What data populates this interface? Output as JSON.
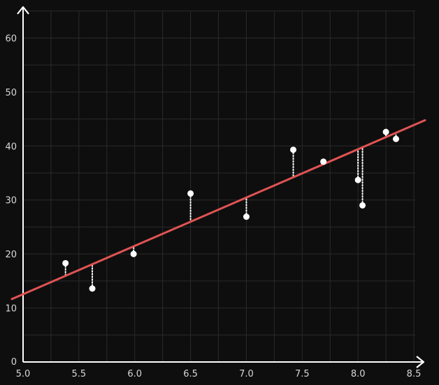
{
  "chart_data": {
    "type": "scatter",
    "title": "",
    "xlabel": "",
    "ylabel": "",
    "xlim": [
      5.0,
      8.6
    ],
    "ylim": [
      0,
      66
    ],
    "x_ticks": [
      5.0,
      5.5,
      6.0,
      6.5,
      7.0,
      7.5,
      8.0,
      8.5
    ],
    "x_tick_labels": [
      "5.0",
      "5.5",
      "6.0",
      "6.5",
      "7.0",
      "7.5",
      "8.0",
      "8.5"
    ],
    "y_ticks": [
      0,
      10,
      20,
      30,
      40,
      50,
      60
    ],
    "y_tick_labels": [
      "0",
      "10",
      "20",
      "30",
      "40",
      "50",
      "60"
    ],
    "grid": true,
    "points": [
      {
        "x": 5.38,
        "y": 18.3
      },
      {
        "x": 5.62,
        "y": 13.6
      },
      {
        "x": 5.99,
        "y": 20.0
      },
      {
        "x": 6.5,
        "y": 31.2
      },
      {
        "x": 7.0,
        "y": 26.9
      },
      {
        "x": 7.42,
        "y": 39.3
      },
      {
        "x": 7.69,
        "y": 37.1
      },
      {
        "x": 8.0,
        "y": 33.7
      },
      {
        "x": 8.04,
        "y": 29.0
      },
      {
        "x": 8.25,
        "y": 42.6
      },
      {
        "x": 8.34,
        "y": 41.3
      }
    ],
    "fit_line": {
      "slope": 8.95,
      "intercept": -32.2
    },
    "residuals_shown": true,
    "colors": {
      "background": "#0e0e0e",
      "axes": "#ffffff",
      "grid": "#2a2a2a",
      "fit_line": "#e05353",
      "points": "#ffffff",
      "residuals": "#ffffff"
    }
  }
}
